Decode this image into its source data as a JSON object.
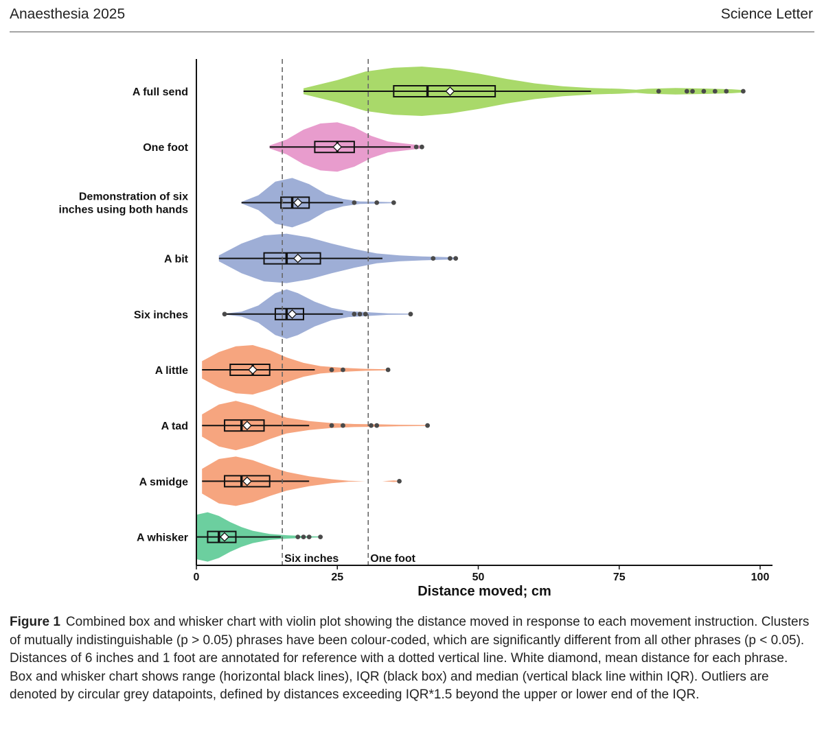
{
  "header": {
    "journal": "Anaesthesia 2025",
    "section": "Science Letter"
  },
  "chart_data": {
    "type": "violin-box",
    "xlabel": "Distance moved; cm",
    "xlim": [
      0,
      100
    ],
    "xticks": [
      0,
      25,
      50,
      75,
      100
    ],
    "reference_lines": [
      {
        "value": 15.24,
        "label": "Six inches"
      },
      {
        "value": 30.48,
        "label": "One foot"
      }
    ],
    "categories": [
      {
        "label": "A full send",
        "color": "#a9d96a",
        "min": 19,
        "q1": 35,
        "median": 41,
        "q3": 53,
        "whisker_high": 70,
        "max": 97,
        "mean": 45,
        "outliers": [
          82,
          87,
          88,
          90,
          92,
          94,
          97
        ],
        "density": [
          [
            19,
            0.12
          ],
          [
            25,
            0.45
          ],
          [
            30,
            0.8
          ],
          [
            35,
            0.95
          ],
          [
            40,
            1.0
          ],
          [
            45,
            0.9
          ],
          [
            50,
            0.72
          ],
          [
            55,
            0.5
          ],
          [
            60,
            0.32
          ],
          [
            65,
            0.2
          ],
          [
            70,
            0.13
          ],
          [
            75,
            0.1
          ],
          [
            78,
            0.06
          ],
          [
            80,
            0.1
          ],
          [
            85,
            0.13
          ],
          [
            90,
            0.11
          ],
          [
            95,
            0.08
          ],
          [
            97,
            0.05
          ]
        ]
      },
      {
        "label": "One foot",
        "color": "#e89ccd",
        "min": 13,
        "q1": 21,
        "median": 25,
        "q3": 28,
        "whisker_high": 38,
        "max": 40,
        "mean": 25,
        "outliers": [
          39,
          40
        ],
        "density": [
          [
            13,
            0.06
          ],
          [
            16,
            0.3
          ],
          [
            19,
            0.7
          ],
          [
            22,
            0.95
          ],
          [
            25,
            1.0
          ],
          [
            28,
            0.8
          ],
          [
            31,
            0.45
          ],
          [
            34,
            0.22
          ],
          [
            37,
            0.14
          ],
          [
            40,
            0.06
          ]
        ]
      },
      {
        "label": "Demonstration of six inches using both hands",
        "color": "#9eaed6",
        "min": 8,
        "q1": 15,
        "median": 17,
        "q3": 20,
        "whisker_high": 26,
        "max": 35,
        "mean": 18,
        "outliers": [
          28,
          32,
          35
        ],
        "density": [
          [
            8,
            0.03
          ],
          [
            11,
            0.3
          ],
          [
            14,
            0.85
          ],
          [
            17,
            1.0
          ],
          [
            20,
            0.75
          ],
          [
            23,
            0.35
          ],
          [
            26,
            0.15
          ],
          [
            29,
            0.05
          ],
          [
            32,
            0.04
          ],
          [
            35,
            0.02
          ]
        ]
      },
      {
        "label": "A bit",
        "color": "#9eaed6",
        "min": 4,
        "q1": 12,
        "median": 16,
        "q3": 22,
        "whisker_high": 33,
        "max": 46,
        "mean": 18,
        "outliers": [
          42,
          45,
          46
        ],
        "density": [
          [
            4,
            0.12
          ],
          [
            8,
            0.6
          ],
          [
            12,
            0.93
          ],
          [
            16,
            1.0
          ],
          [
            20,
            0.85
          ],
          [
            24,
            0.6
          ],
          [
            28,
            0.38
          ],
          [
            32,
            0.2
          ],
          [
            36,
            0.12
          ],
          [
            40,
            0.08
          ],
          [
            43,
            0.06
          ],
          [
            46,
            0.04
          ]
        ]
      },
      {
        "label": "Six inches",
        "color": "#9eaed6",
        "min": 5,
        "q1": 14,
        "median": 16,
        "q3": 19,
        "whisker_high": 26,
        "max": 38,
        "mean": 17,
        "outliers": [
          5,
          28,
          29,
          30,
          38
        ],
        "density": [
          [
            5,
            0.02
          ],
          [
            8,
            0.1
          ],
          [
            11,
            0.35
          ],
          [
            14,
            0.85
          ],
          [
            16,
            1.0
          ],
          [
            18,
            0.85
          ],
          [
            21,
            0.5
          ],
          [
            24,
            0.25
          ],
          [
            27,
            0.12
          ],
          [
            30,
            0.08
          ],
          [
            34,
            0.03
          ],
          [
            38,
            0.02
          ]
        ]
      },
      {
        "label": "A little",
        "color": "#f6a57f",
        "min": 1,
        "q1": 6,
        "median": 10,
        "q3": 13,
        "whisker_high": 21,
        "max": 34,
        "mean": 10,
        "outliers": [
          24,
          26,
          34
        ],
        "density": [
          [
            1,
            0.35
          ],
          [
            4,
            0.72
          ],
          [
            7,
            0.95
          ],
          [
            10,
            1.0
          ],
          [
            13,
            0.8
          ],
          [
            16,
            0.5
          ],
          [
            19,
            0.28
          ],
          [
            22,
            0.15
          ],
          [
            26,
            0.08
          ],
          [
            30,
            0.04
          ],
          [
            34,
            0.02
          ]
        ]
      },
      {
        "label": "A tad",
        "color": "#f6a57f",
        "min": 1,
        "q1": 5,
        "median": 8,
        "q3": 12,
        "whisker_high": 20,
        "max": 41,
        "mean": 9,
        "outliers": [
          24,
          26,
          31,
          32,
          41
        ],
        "density": [
          [
            1,
            0.45
          ],
          [
            4,
            0.85
          ],
          [
            7,
            1.0
          ],
          [
            10,
            0.82
          ],
          [
            13,
            0.55
          ],
          [
            16,
            0.32
          ],
          [
            20,
            0.18
          ],
          [
            24,
            0.1
          ],
          [
            28,
            0.06
          ],
          [
            32,
            0.05
          ],
          [
            36,
            0.03
          ],
          [
            41,
            0.02
          ]
        ]
      },
      {
        "label": "A smidge",
        "color": "#f6a57f",
        "min": 1,
        "q1": 5,
        "median": 8,
        "q3": 13,
        "whisker_high": 20,
        "max": 36,
        "mean": 9,
        "outliers": [
          36
        ],
        "density": [
          [
            1,
            0.5
          ],
          [
            4,
            0.9
          ],
          [
            7,
            1.0
          ],
          [
            10,
            0.85
          ],
          [
            13,
            0.6
          ],
          [
            16,
            0.38
          ],
          [
            20,
            0.2
          ],
          [
            24,
            0.08
          ],
          [
            27,
            0.02
          ],
          [
            30,
            0.0
          ],
          [
            33,
            0.0
          ],
          [
            35,
            0.03
          ],
          [
            36,
            0.02
          ]
        ]
      },
      {
        "label": "A whisker",
        "color": "#6ccf9f",
        "min": 0,
        "q1": 2,
        "median": 4,
        "q3": 7,
        "whisker_high": 15,
        "max": 22,
        "mean": 5,
        "outliers": [
          18,
          19,
          20,
          22
        ],
        "density": [
          [
            0,
            0.9
          ],
          [
            2,
            1.0
          ],
          [
            4,
            0.85
          ],
          [
            6,
            0.6
          ],
          [
            8,
            0.4
          ],
          [
            10,
            0.25
          ],
          [
            13,
            0.12
          ],
          [
            16,
            0.07
          ],
          [
            19,
            0.04
          ],
          [
            22,
            0.02
          ]
        ]
      }
    ]
  },
  "caption": {
    "label": "Figure 1",
    "text": "Combined box and whisker chart with violin plot showing the distance moved in response to each movement instruction. Clusters of mutually indistinguishable (p > 0.05) phrases have been colour-coded, which are significantly different from all other phrases (p < 0.05). Distances of 6 inches and 1 foot are annotated for reference with a dotted vertical line. White diamond, mean distance for each phrase. Box and whisker chart shows range (horizontal black lines), IQR (black box) and median (vertical black line within IQR). Outliers are denoted by circular grey datapoints, defined by distances exceeding IQR*1.5 beyond the upper or lower end of the IQR."
  }
}
